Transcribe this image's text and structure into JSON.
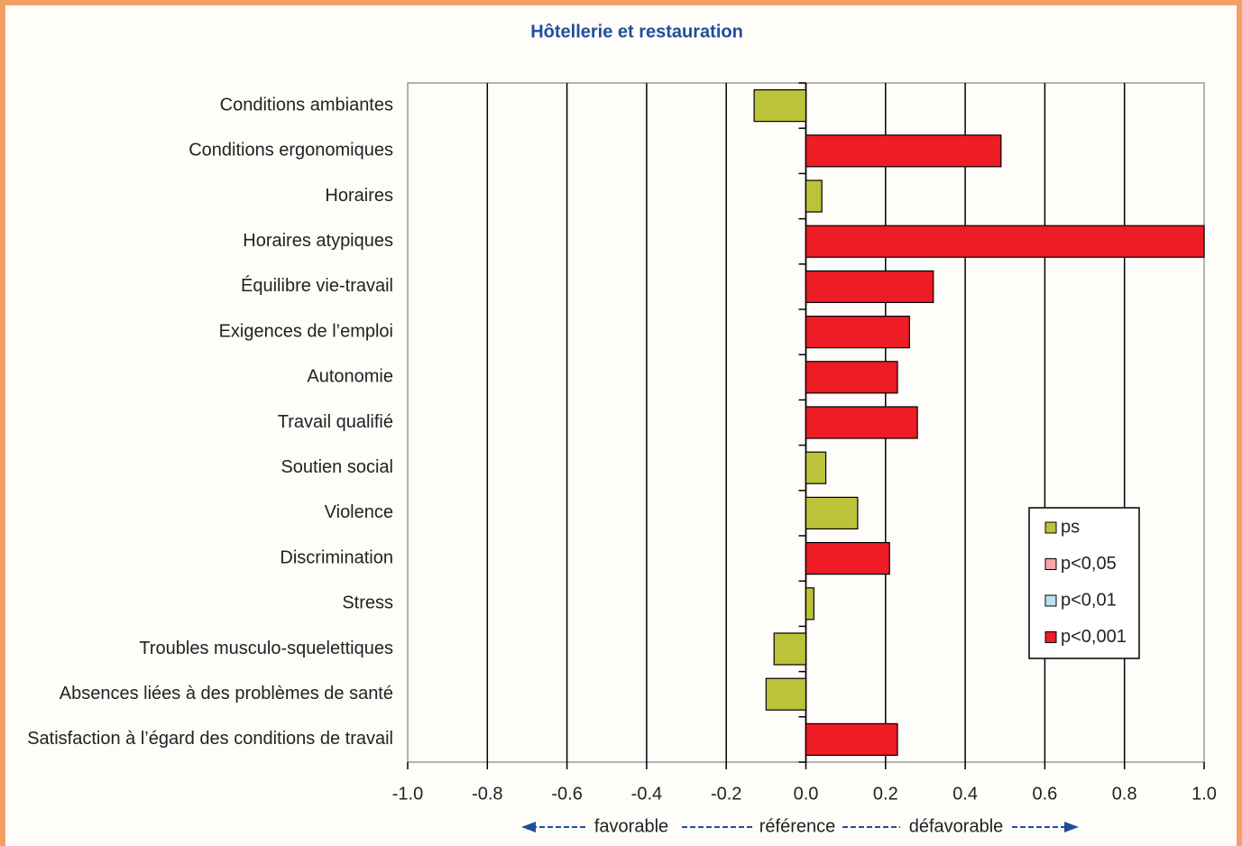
{
  "chart_data": {
    "type": "bar",
    "orientation": "horizontal",
    "title": "Hôtellerie et restauration",
    "categories": [
      "Conditions ambiantes",
      "Conditions ergonomiques",
      "Horaires",
      "Horaires atypiques",
      "Équilibre vie-travail",
      "Exigences de l’emploi",
      "Autonomie",
      "Travail qualifié",
      "Soutien social",
      "Violence",
      "Discrimination",
      "Stress",
      "Troubles musculo-squelettiques",
      "Absences liées à des problèmes de santé",
      "Satisfaction à l’égard des conditions de travail"
    ],
    "series": [
      {
        "name": "ps",
        "color": "#bcc239",
        "values": [
          -0.13,
          null,
          0.04,
          null,
          null,
          null,
          null,
          null,
          0.05,
          0.13,
          null,
          0.02,
          -0.08,
          -0.1,
          null
        ]
      },
      {
        "name": "p<0,05",
        "color": "#f6a6a6",
        "values": [
          null,
          null,
          null,
          null,
          null,
          null,
          null,
          null,
          null,
          null,
          null,
          null,
          null,
          null,
          null
        ]
      },
      {
        "name": "p<0,01",
        "color": "#b7e2f2",
        "values": [
          null,
          null,
          null,
          null,
          null,
          null,
          null,
          null,
          null,
          null,
          null,
          null,
          null,
          null,
          null
        ]
      },
      {
        "name": "p<0,001",
        "color": "#ee1c25",
        "values": [
          null,
          0.49,
          null,
          1.0,
          0.32,
          0.26,
          0.23,
          0.28,
          null,
          null,
          0.21,
          null,
          null,
          null,
          0.23
        ]
      }
    ],
    "xlim": [
      -1.0,
      1.0
    ],
    "xticks": [
      {
        "value": -1.0,
        "label": "-1.0"
      },
      -0.8,
      -0.6,
      -0.4,
      -0.2,
      {
        "value": 0,
        "label": "0.0"
      },
      0.2,
      0.4,
      0.6,
      0.8,
      {
        "value": 1.0,
        "label": "1.0"
      }
    ],
    "grid": true,
    "legend": "lower right",
    "annotations": [
      "favorable",
      "référence",
      "défavorable"
    ]
  }
}
